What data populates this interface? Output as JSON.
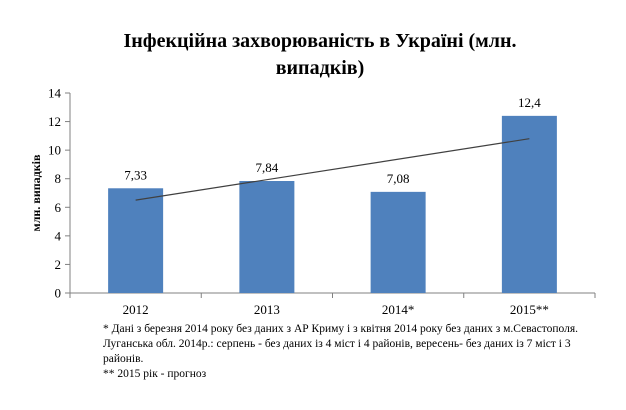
{
  "chart_data": {
    "type": "bar",
    "title": "Інфекційна захворюваність в Україні (млн. випадків)",
    "ylabel": "млн. випадків",
    "xlabel": "",
    "categories": [
      "2012",
      "2013",
      "2014*",
      "2015**"
    ],
    "values": [
      7.33,
      7.84,
      7.08,
      12.4
    ],
    "data_labels": [
      "7,33",
      "7,84",
      "7,08",
      "12,4"
    ],
    "ylim": [
      0,
      14
    ],
    "yticks": [
      0,
      2,
      4,
      6,
      8,
      10,
      12,
      14
    ],
    "trendline": {
      "type": "linear",
      "start": 6.5,
      "end": 10.8
    },
    "legend": "none",
    "grid": false,
    "colors": {
      "bar": "#4f81bd",
      "trendline": "#404040",
      "axis": "#808080"
    }
  },
  "notes": [
    "* Дані з березня 2014 року без даних з АР Криму і з квітня 2014 року без даних з м.Севастополя.",
    "Луганська обл. 2014р.:  серпень -  без даних із 4 міст і 4 районів, вересень- без даних із 7 міст і 3 районів.",
    "** 2015 рік - прогноз"
  ]
}
